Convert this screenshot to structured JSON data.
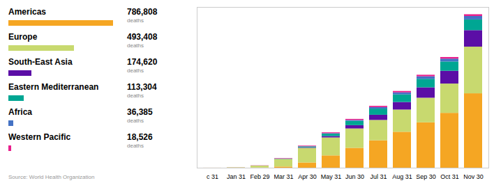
{
  "chart_data": {
    "type": "bar",
    "stacked": true,
    "legend": "left",
    "tick_labels": "x",
    "source": "Source: World Health Organization",
    "totals_label": "deaths",
    "categories": [
      "c 31",
      "Jan 31",
      "Feb 29",
      "Mar 31",
      "Apr 30",
      "May 31",
      "Jun 30",
      "Jul 31",
      "Aug 31",
      "Sep 30",
      "Oct 31",
      "Nov 30"
    ],
    "ylim": [
      0,
      1700000
    ],
    "series": [
      {
        "name": "Americas",
        "color": "#F5A623",
        "total": {
          "value": 786808,
          "label": "786,808"
        },
        "values": [
          0,
          200,
          2000,
          12000,
          55000,
          130000,
          210000,
          290000,
          380000,
          480000,
          580000,
          786808
        ]
      },
      {
        "name": "Europe",
        "color": "#C8D96F",
        "total": {
          "value": 493408,
          "label": "493,408"
        },
        "values": [
          500,
          4000,
          20000,
          80000,
          155000,
          190000,
          205000,
          215000,
          235000,
          260000,
          310000,
          493408
        ]
      },
      {
        "name": "South-East Asia",
        "color": "#5B0EA6",
        "total": {
          "value": 174620,
          "label": "174,620"
        },
        "values": [
          0,
          0,
          100,
          1000,
          5000,
          15000,
          35000,
          55000,
          80000,
          110000,
          135000,
          174620
        ]
      },
      {
        "name": "Eastern Mediterranean",
        "color": "#00A693",
        "total": {
          "value": 113304,
          "label": "113,304"
        },
        "values": [
          0,
          100,
          500,
          3000,
          10000,
          25000,
          45000,
          65000,
          80000,
          90000,
          98000,
          113304
        ]
      },
      {
        "name": "Africa",
        "color": "#4472C4",
        "total": {
          "value": 36385,
          "label": "36,385"
        },
        "values": [
          0,
          0,
          50,
          300,
          1500,
          5000,
          10000,
          16000,
          22000,
          27000,
          30500,
          36385
        ]
      },
      {
        "name": "Western Pacific",
        "color": "#E91E8C",
        "total": {
          "value": 18526,
          "label": "18,526"
        },
        "values": [
          200,
          800,
          2000,
          4500,
          7000,
          9000,
          11000,
          13000,
          14500,
          16000,
          17000,
          18526
        ]
      }
    ]
  }
}
